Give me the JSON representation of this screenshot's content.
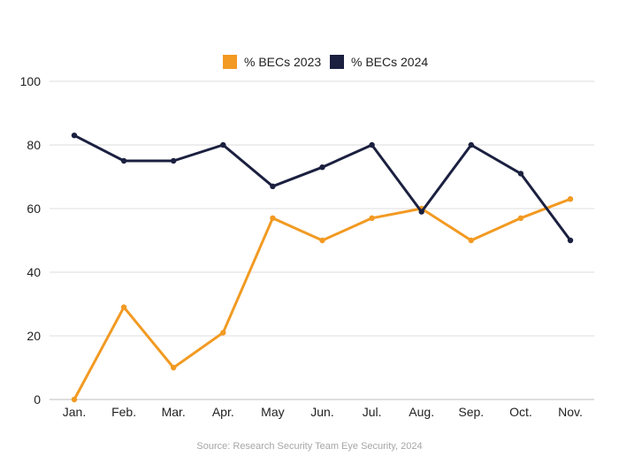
{
  "chart_data": {
    "type": "line",
    "categories": [
      "Jan.",
      "Feb.",
      "Mar.",
      "Apr.",
      "May",
      "Jun.",
      "Jul.",
      "Aug.",
      "Sep.",
      "Oct.",
      "Nov."
    ],
    "series": [
      {
        "name": "% BECs 2023",
        "color": "#f29a22",
        "values": [
          0,
          29,
          10,
          21,
          57,
          50,
          57,
          60,
          50,
          57,
          63
        ]
      },
      {
        "name": "% BECs 2024",
        "color": "#1b2040",
        "values": [
          83,
          75,
          75,
          80,
          67,
          73,
          80,
          59,
          80,
          71,
          50
        ]
      }
    ],
    "yticks": [
      0,
      20,
      40,
      60,
      80,
      100
    ],
    "ylim": [
      0,
      100
    ],
    "grid": true,
    "legend_position": "top-center",
    "source": "Source: Research Security Team Eye Security, 2024"
  }
}
